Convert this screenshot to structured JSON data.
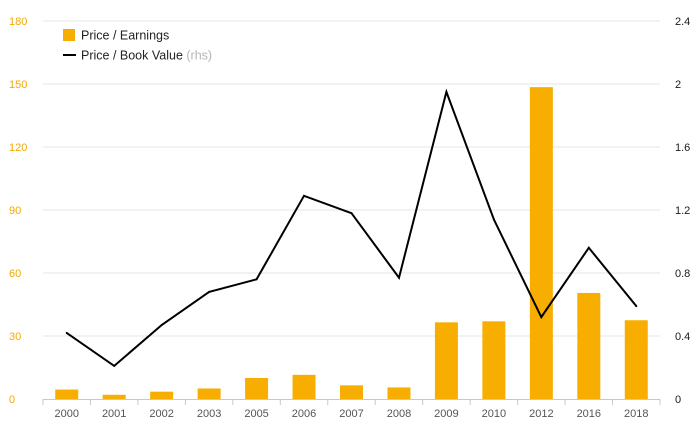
{
  "chart_data": {
    "type": "bar",
    "categories": [
      "2000",
      "2001",
      "2002",
      "2003",
      "2005",
      "2006",
      "2007",
      "2008",
      "2009",
      "2010",
      "2012",
      "2016",
      "2018"
    ],
    "series": [
      {
        "name": "Price / Earnings",
        "type": "bar",
        "axis": "left",
        "color": "#f7ae00",
        "values": [
          4.5,
          2.0,
          3.5,
          5.0,
          10.0,
          11.5,
          6.5,
          5.5,
          36.5,
          37.0,
          148.5,
          50.5,
          37.5
        ]
      },
      {
        "name": "Price / Book Value",
        "name_suffix": "(rhs)",
        "type": "line",
        "axis": "right",
        "color": "#000000",
        "values": [
          0.42,
          0.21,
          0.47,
          0.68,
          0.76,
          1.29,
          1.18,
          0.77,
          1.95,
          1.14,
          0.52,
          0.96,
          0.59
        ]
      }
    ],
    "ylim_left": [
      0,
      180
    ],
    "yticks_left": [
      0,
      30,
      60,
      90,
      120,
      150,
      180
    ],
    "ylim_right": [
      0,
      2.4
    ],
    "yticks_right": [
      "0",
      "0.4",
      "0.8",
      "1.2",
      "1.6",
      "2",
      "2.4"
    ],
    "grid": true,
    "legend_position": "top-left"
  }
}
